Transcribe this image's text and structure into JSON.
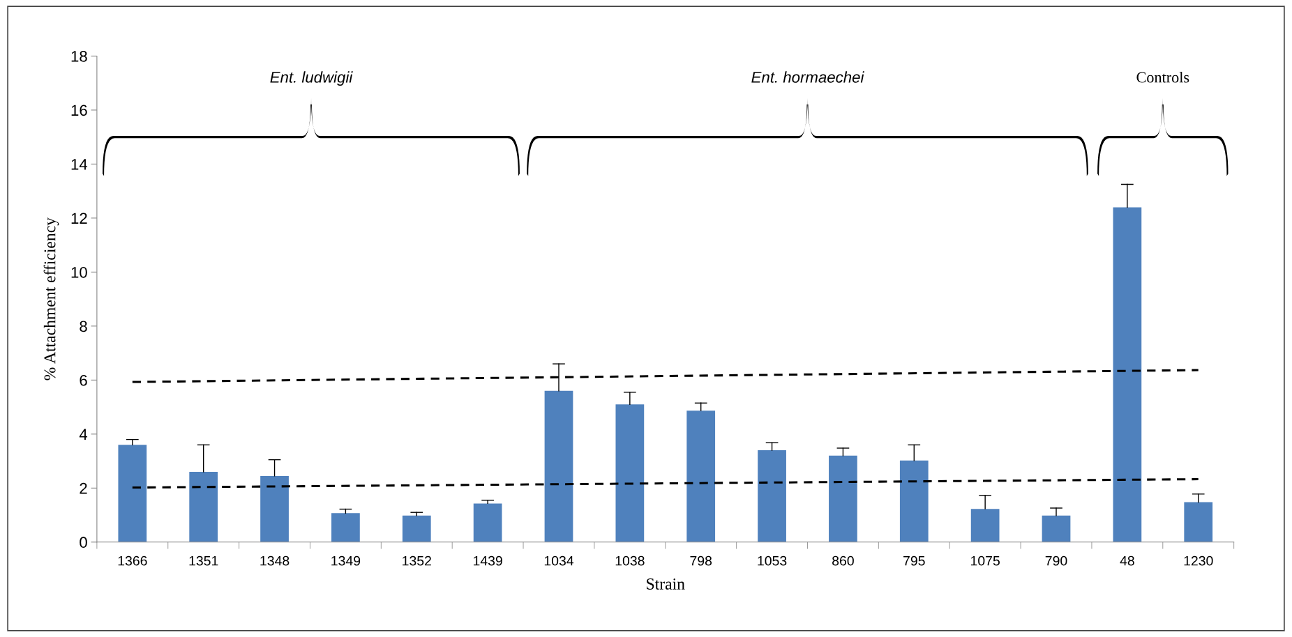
{
  "chart_data": {
    "type": "bar",
    "xlabel": "Strain",
    "ylabel": "% Attachment efficiency",
    "categories": [
      "1366",
      "1351",
      "1348",
      "1349",
      "1352",
      "1439",
      "1034",
      "1038",
      "798",
      "1053",
      "860",
      "795",
      "1075",
      "790",
      "48",
      "1230"
    ],
    "series": [
      {
        "color": "#4f81bd",
        "values": [
          3.6,
          2.6,
          2.45,
          1.07,
          0.98,
          1.43,
          5.6,
          5.1,
          4.87,
          3.4,
          3.2,
          3.02,
          1.23,
          0.98,
          12.4,
          1.48
        ],
        "errors": [
          [
            3.6,
            3.8
          ],
          [
            2.6,
            3.6
          ],
          [
            2.45,
            3.05
          ],
          [
            1.07,
            1.22
          ],
          [
            0.98,
            1.1
          ],
          [
            1.43,
            1.55
          ],
          [
            5.6,
            6.6
          ],
          [
            5.1,
            5.55
          ],
          [
            4.87,
            5.15
          ],
          [
            3.4,
            3.68
          ],
          [
            3.2,
            3.48
          ],
          [
            3.02,
            3.6
          ],
          [
            1.23,
            1.73
          ],
          [
            0.98,
            1.26
          ],
          [
            12.4,
            13.25
          ],
          [
            1.48,
            1.78
          ]
        ]
      },
      {
        "type": "line",
        "color": "#000000",
        "line_style": "dashed",
        "values": [
          5.93,
          null,
          null,
          null,
          null,
          null,
          null,
          null,
          null,
          null,
          null,
          null,
          null,
          null,
          null,
          6.37
        ]
      },
      {
        "type": "line",
        "color": "#000000",
        "line_style": "dashed",
        "values": [
          2.02,
          null,
          null,
          null,
          null,
          null,
          null,
          null,
          null,
          null,
          null,
          null,
          null,
          null,
          null,
          2.33
        ]
      }
    ],
    "ylim": [
      0,
      18
    ],
    "yticks": [
      0,
      2,
      4,
      6,
      8,
      10,
      12,
      14,
      16,
      18
    ],
    "grid": false,
    "legend": false,
    "annotations": [
      "Ent. ludwigii",
      "Ent. hormaechei",
      "Controls"
    ]
  }
}
